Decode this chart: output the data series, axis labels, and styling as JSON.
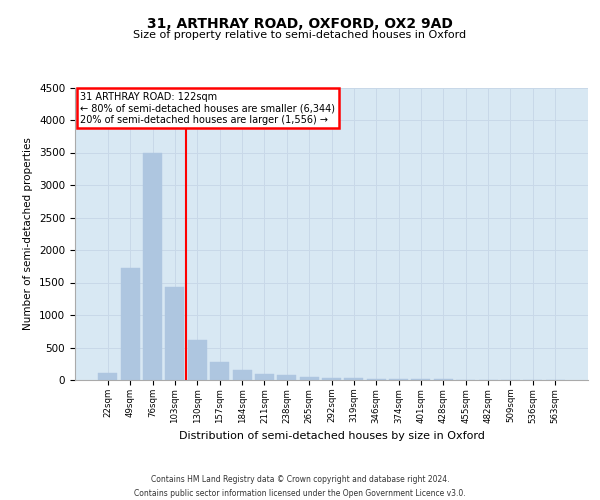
{
  "title": "31, ARTHRAY ROAD, OXFORD, OX2 9AD",
  "subtitle": "Size of property relative to semi-detached houses in Oxford",
  "xlabel": "Distribution of semi-detached houses by size in Oxford",
  "ylabel": "Number of semi-detached properties",
  "categories": [
    "22sqm",
    "49sqm",
    "76sqm",
    "103sqm",
    "130sqm",
    "157sqm",
    "184sqm",
    "211sqm",
    "238sqm",
    "265sqm",
    "292sqm",
    "319sqm",
    "346sqm",
    "374sqm",
    "401sqm",
    "428sqm",
    "455sqm",
    "482sqm",
    "509sqm",
    "536sqm",
    "563sqm"
  ],
  "values": [
    110,
    1720,
    3490,
    1430,
    620,
    280,
    160,
    95,
    70,
    50,
    30,
    25,
    20,
    15,
    10,
    8,
    6,
    5,
    4,
    3,
    2
  ],
  "bar_color": "#aec6e0",
  "bar_edge_color": "#aec6e0",
  "grid_color": "#c8d8e8",
  "background_color": "#d8e8f3",
  "vline_color": "red",
  "annotation_title": "31 ARTHRAY ROAD: 122sqm",
  "annotation_line1": "← 80% of semi-detached houses are smaller (6,344)",
  "annotation_line2": "20% of semi-detached houses are larger (1,556) →",
  "ylim": [
    0,
    4500
  ],
  "yticks": [
    0,
    500,
    1000,
    1500,
    2000,
    2500,
    3000,
    3500,
    4000,
    4500
  ],
  "footer_line1": "Contains HM Land Registry data © Crown copyright and database right 2024.",
  "footer_line2": "Contains public sector information licensed under the Open Government Licence v3.0."
}
